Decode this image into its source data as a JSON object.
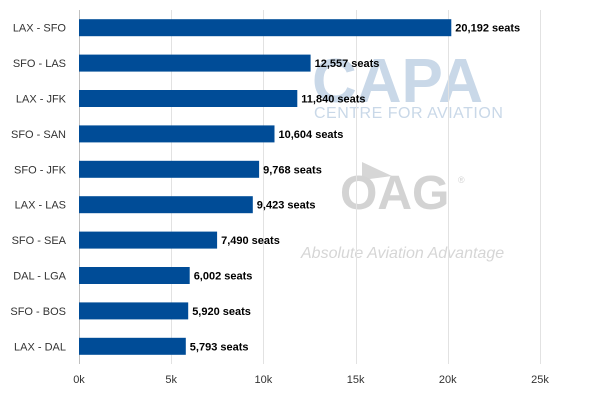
{
  "chart_data": {
    "type": "bar",
    "orientation": "horizontal",
    "categories": [
      "LAX - SFO",
      "SFO - LAS",
      "LAX - JFK",
      "SFO - SAN",
      "SFO - JFK",
      "LAX - LAS",
      "SFO - SEA",
      "DAL - LGA",
      "SFO - BOS",
      "LAX - DAL"
    ],
    "values": [
      20192,
      12557,
      11840,
      10604,
      9768,
      9423,
      7490,
      6002,
      5920,
      5793
    ],
    "data_labels": [
      "20,192 seats",
      "12,557 seats",
      "11,840 seats",
      "10,604 seats",
      "9,768 seats",
      "9,423 seats",
      "7,490 seats",
      "6,002 seats",
      "5,920 seats",
      "5,793 seats"
    ],
    "xlim": [
      0,
      25000
    ],
    "x_ticks": [
      0,
      5000,
      10000,
      15000,
      20000,
      25000
    ],
    "x_tick_labels": [
      "0k",
      "5k",
      "10k",
      "15k",
      "20k",
      "25k"
    ],
    "grid": true,
    "bar_color": "#004c97"
  },
  "watermarks": {
    "capa": "CAPA",
    "capa_sub": "CENTRE FOR AVIATION",
    "oag": "OAG",
    "oag_reg": "®",
    "oag_tagline": "Absolute Aviation Advantage"
  }
}
